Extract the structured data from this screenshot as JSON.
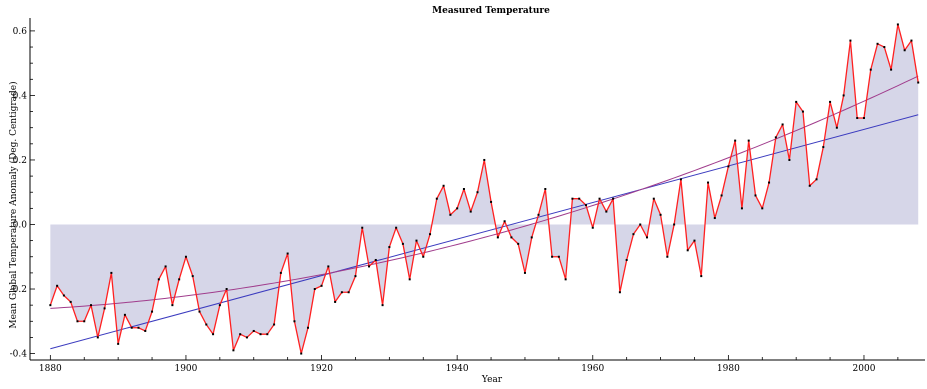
{
  "chart_data": {
    "type": "line",
    "title": "Measured Temperature",
    "xlabel": "Year",
    "ylabel": "Mean Global Temperature Anomaly (Deg. Centigrade)",
    "xlim": [
      1877,
      2009
    ],
    "ylim": [
      -0.42,
      0.64
    ],
    "baseline": 0.0,
    "x_ticks": [
      1880,
      1900,
      1920,
      1940,
      1960,
      1980,
      2000
    ],
    "x_tick_labels": [
      "1880",
      "1900",
      "1920",
      "1940",
      "1960",
      "1980",
      "2000"
    ],
    "y_ticks": [
      -0.4,
      -0.2,
      0.0,
      0.2,
      0.4,
      0.6
    ],
    "y_tick_labels": [
      "-0.4",
      "-0.2",
      "0.0",
      "0.2",
      "0.4",
      "0.6"
    ],
    "grid": false,
    "colors": {
      "series_line": "#ff2020",
      "series_points": "#000000",
      "fill": "#d6d6e8",
      "linear_fit": "#3b3bbf",
      "quadratic_fit": "#a03c8c",
      "axis": "#000000"
    },
    "series": [
      {
        "x": [
          1880,
          1881,
          1882,
          1883,
          1884,
          1885,
          1886,
          1887,
          1888,
          1889,
          1890,
          1891,
          1892,
          1893,
          1894,
          1895,
          1896,
          1897,
          1898,
          1899,
          1900,
          1901,
          1902,
          1903,
          1904,
          1905,
          1906,
          1907,
          1908,
          1909,
          1910,
          1911,
          1912,
          1913,
          1914,
          1915,
          1916,
          1917,
          1918,
          1919,
          1920,
          1921,
          1922,
          1923,
          1924,
          1925,
          1926,
          1927,
          1928,
          1929,
          1930,
          1931,
          1932,
          1933,
          1934,
          1935,
          1936,
          1937,
          1938,
          1939,
          1940,
          1941,
          1942,
          1943,
          1944,
          1945,
          1946,
          1947,
          1948,
          1949,
          1950,
          1951,
          1952,
          1953,
          1954,
          1955,
          1956,
          1957,
          1958,
          1959,
          1960,
          1961,
          1962,
          1963,
          1964,
          1965,
          1966,
          1967,
          1968,
          1969,
          1970,
          1971,
          1972,
          1973,
          1974,
          1975,
          1976,
          1977,
          1978,
          1979,
          1980,
          1981,
          1982,
          1983,
          1984,
          1985,
          1986,
          1987,
          1988,
          1989,
          1990,
          1991,
          1992,
          1993,
          1994,
          1995,
          1996,
          1997,
          1998,
          1999,
          2000,
          2001,
          2002,
          2003,
          2004,
          2005,
          2006,
          2007,
          2008
        ],
        "values": [
          -0.25,
          -0.19,
          -0.22,
          -0.24,
          -0.3,
          -0.3,
          -0.25,
          -0.35,
          -0.26,
          -0.15,
          -0.37,
          -0.28,
          -0.32,
          -0.32,
          -0.33,
          -0.27,
          -0.17,
          -0.13,
          -0.25,
          -0.17,
          -0.1,
          -0.16,
          -0.27,
          -0.31,
          -0.34,
          -0.25,
          -0.2,
          -0.39,
          -0.34,
          -0.35,
          -0.33,
          -0.34,
          -0.34,
          -0.31,
          -0.15,
          -0.09,
          -0.3,
          -0.4,
          -0.32,
          -0.2,
          -0.19,
          -0.13,
          -0.24,
          -0.21,
          -0.21,
          -0.16,
          -0.01,
          -0.13,
          -0.11,
          -0.25,
          -0.07,
          -0.01,
          -0.06,
          -0.17,
          -0.05,
          -0.1,
          -0.03,
          0.08,
          0.12,
          0.03,
          0.05,
          0.11,
          0.04,
          0.1,
          0.2,
          0.07,
          -0.04,
          0.01,
          -0.04,
          -0.06,
          -0.15,
          -0.04,
          0.03,
          0.11,
          -0.1,
          -0.1,
          -0.17,
          0.08,
          0.08,
          0.06,
          -0.01,
          0.08,
          0.04,
          0.08,
          -0.21,
          -0.11,
          -0.03,
          0.0,
          -0.04,
          0.08,
          0.03,
          -0.1,
          0.0,
          0.14,
          -0.08,
          -0.05,
          -0.16,
          0.13,
          0.02,
          0.09,
          0.18,
          0.26,
          0.05,
          0.26,
          0.09,
          0.05,
          0.13,
          0.27,
          0.31,
          0.2,
          0.38,
          0.35,
          0.12,
          0.14,
          0.24,
          0.38,
          0.3,
          0.4,
          0.57,
          0.33,
          0.33,
          0.48,
          0.56,
          0.55,
          0.48,
          0.62,
          0.54,
          0.57,
          0.44
        ]
      }
    ],
    "fits": [
      {
        "type": "linear",
        "start": [
          1880,
          -0.385
        ],
        "end": [
          2008,
          0.34
        ]
      },
      {
        "type": "quadratic",
        "points": [
          [
            1880,
            -0.26
          ],
          [
            1944,
            -0.04
          ],
          [
            2008,
            0.46
          ]
        ]
      }
    ]
  }
}
